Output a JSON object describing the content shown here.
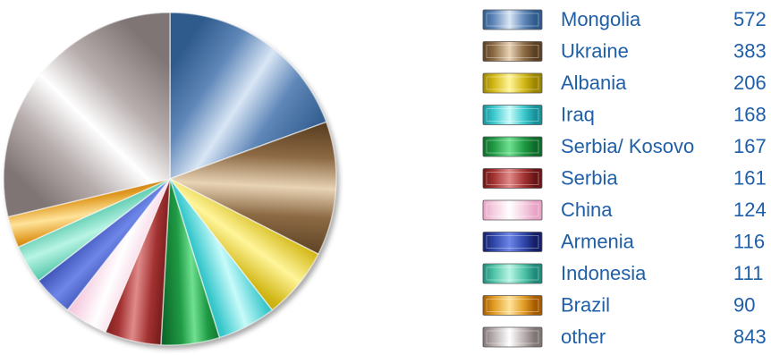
{
  "chart_data": {
    "type": "pie",
    "title": "",
    "legend_position": "right",
    "label_color": "#1f5fa8",
    "start_angle_degrees": 0,
    "direction": "clockwise",
    "slices": [
      {
        "label": "Mongolia",
        "value": 572,
        "display": "572",
        "colors": [
          "#2f5b8c",
          "#d9e6f5",
          "#5f87b8"
        ]
      },
      {
        "label": "Ukraine",
        "value": 383,
        "display": "383",
        "colors": [
          "#5a3f22",
          "#e8d3b5",
          "#8c6a44"
        ]
      },
      {
        "label": "Albania",
        "value": 206,
        "display": "206",
        "colors": [
          "#9c8400",
          "#fff59a",
          "#d2b715"
        ]
      },
      {
        "label": "Iraq",
        "value": 168,
        "display": "168",
        "colors": [
          "#18909a",
          "#c8fafa",
          "#39c8cc"
        ]
      },
      {
        "label": "Serbia/ Kosovo",
        "value": 167,
        "display": "167",
        "colors": [
          "#0e6a2a",
          "#6fe090",
          "#1f9a44"
        ]
      },
      {
        "label": "Serbia",
        "value": 161,
        "display": "161",
        "colors": [
          "#6a1515",
          "#e08a8a",
          "#a33232"
        ]
      },
      {
        "label": "China",
        "value": 124,
        "display": "124",
        "colors": [
          "#e8a4c4",
          "#ffffff",
          "#f5cde0"
        ]
      },
      {
        "label": "Armenia",
        "value": 116,
        "display": "116",
        "colors": [
          "#141f66",
          "#6e86e8",
          "#2f46a8"
        ]
      },
      {
        "label": "Indonesia",
        "value": 111,
        "display": "111",
        "colors": [
          "#1f8a7a",
          "#b8f4e4",
          "#4ec3a6"
        ]
      },
      {
        "label": "Brazil",
        "value": 90,
        "display": "90",
        "colors": [
          "#a55a00",
          "#ffe39a",
          "#e09a22"
        ]
      },
      {
        "label": "other",
        "value": 843,
        "display": "843",
        "colors": [
          "#7f7575",
          "#ffffff",
          "#b8aeae"
        ]
      }
    ]
  }
}
